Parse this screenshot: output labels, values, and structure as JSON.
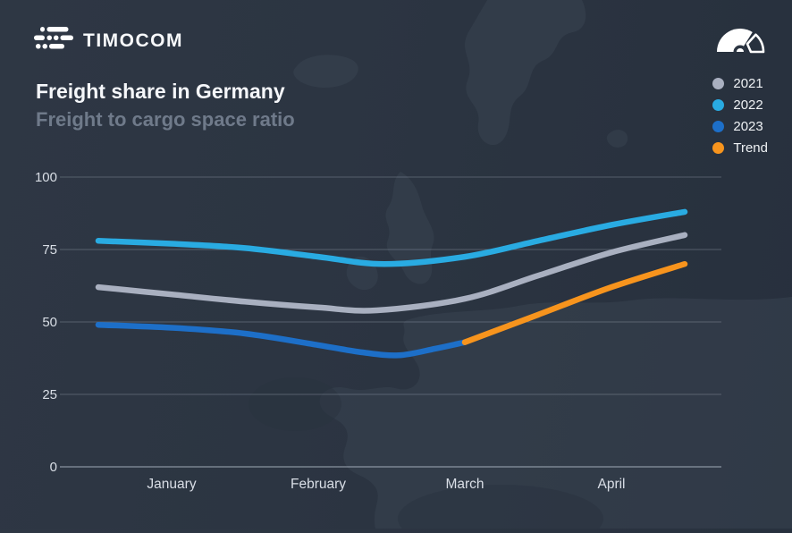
{
  "brand": {
    "name": "TIMOCOM",
    "logo_icon": "truck-speed-lines-icon"
  },
  "header": {
    "gauge_icon": "speedometer-gauge-icon"
  },
  "chart_data": {
    "type": "line",
    "title": "Freight share in Germany",
    "subtitle": "Freight to cargo space ratio",
    "x_categories": [
      "January",
      "February",
      "March",
      "April"
    ],
    "x_unit": "months (1 = January, 4 = April); curves span from half a month before January to half a month after April",
    "ylim": [
      0,
      100
    ],
    "yticks": [
      0,
      25,
      50,
      75,
      100
    ],
    "grid": "horizontal",
    "legend_position": "top-right",
    "series": [
      {
        "name": "2021",
        "color": "#a9b0c0",
        "x": [
          0.5,
          1,
          1.5,
          2,
          2.4,
          3,
          3.5,
          4,
          4.5
        ],
        "values": [
          62,
          59.5,
          57,
          55,
          54,
          58,
          66,
          74,
          80
        ]
      },
      {
        "name": "2022",
        "color": "#29abe2",
        "x": [
          0.5,
          1,
          1.5,
          2,
          2.45,
          3,
          3.5,
          4,
          4.5
        ],
        "values": [
          78,
          77,
          75.5,
          72.5,
          70,
          72.5,
          78,
          83.5,
          88
        ]
      },
      {
        "name": "2023",
        "color": "#1d6fc8",
        "x": [
          0.5,
          1,
          1.5,
          2,
          2.3,
          2.55,
          2.8,
          3
        ],
        "values": [
          49,
          48,
          46,
          42,
          39.5,
          38.5,
          40.8,
          43
        ]
      },
      {
        "name": "Trend",
        "color": "#f7941d",
        "x": [
          3,
          3.5,
          4,
          4.5
        ],
        "values": [
          43,
          52.5,
          62,
          70
        ]
      }
    ]
  },
  "colors": {
    "background": "#2c3542",
    "background_right": "#27303d",
    "map_land": "#3b4654",
    "title": "#f5f7fa",
    "subtitle": "#6f7a8a",
    "axis_text": "#d9dee6",
    "line_2021": "#a9b0c0",
    "line_2022": "#29abe2",
    "line_2023": "#1d6fc8",
    "line_trend": "#f7941d"
  }
}
